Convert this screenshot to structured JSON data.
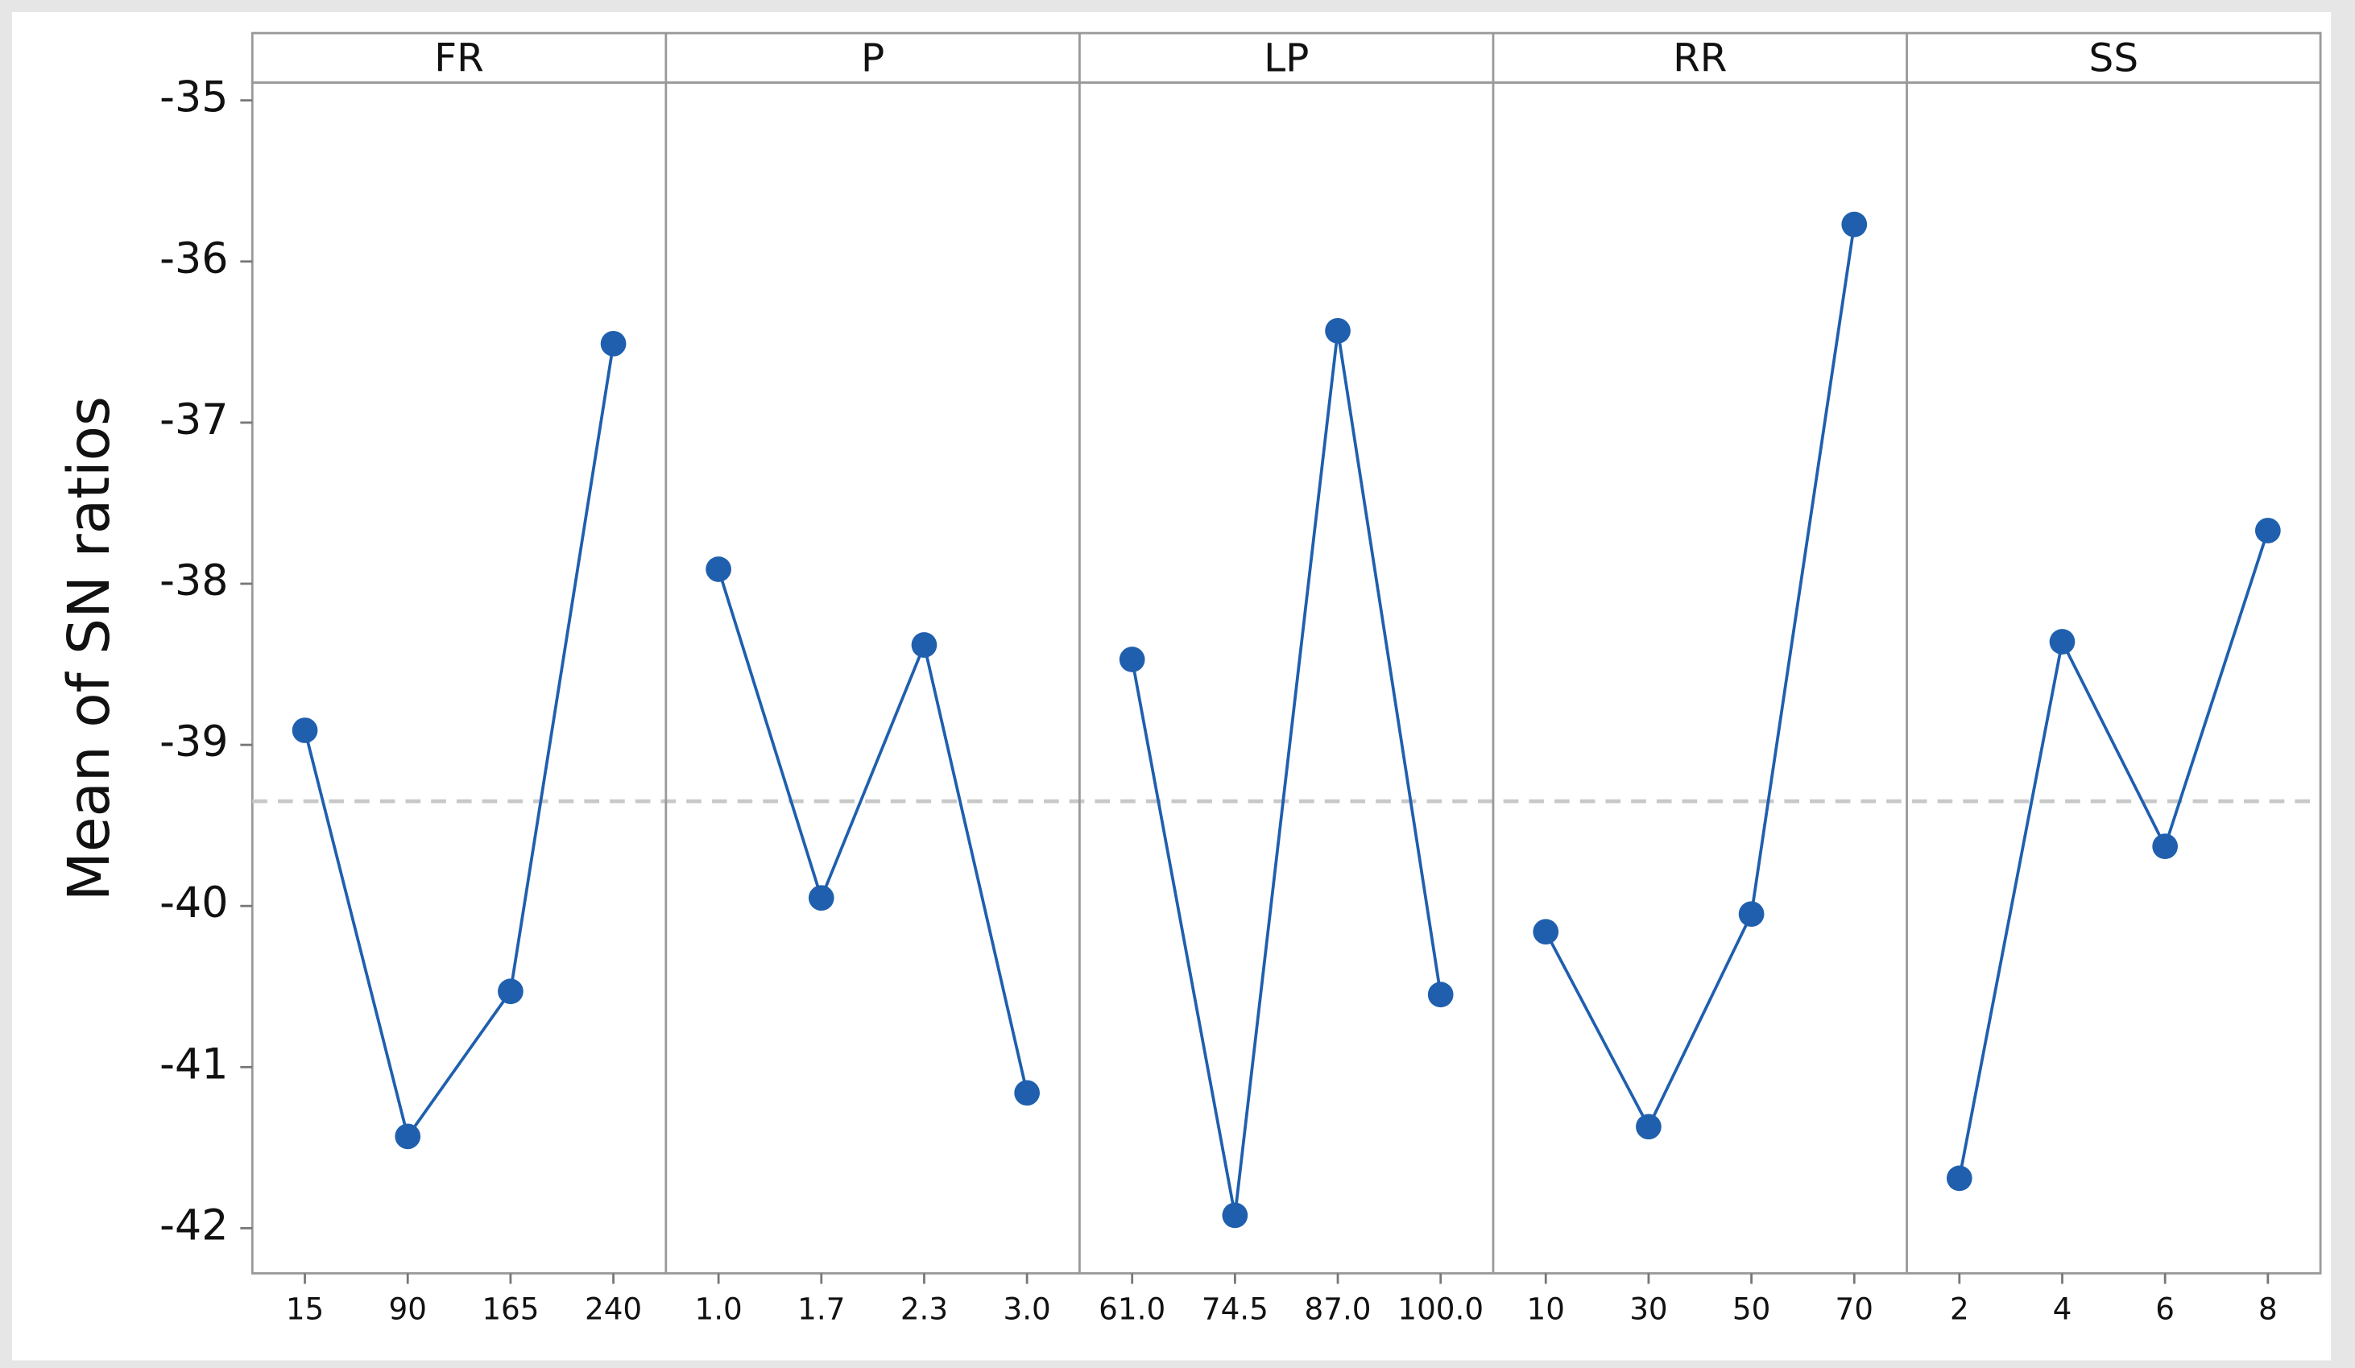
{
  "chart_data": {
    "type": "line",
    "y_label": "Mean of SN ratios",
    "ylim": [
      -42.28,
      -34.89
    ],
    "yticks": [
      -35,
      -36,
      -37,
      -38,
      -39,
      -40,
      -41,
      -42
    ],
    "reference_line": -39.35,
    "color": "#1f5fae",
    "panels": [
      {
        "title": "FR",
        "categories": [
          "15",
          "90",
          "165",
          "240"
        ],
        "values": [
          -38.91,
          -41.43,
          -40.53,
          -36.51
        ]
      },
      {
        "title": "P",
        "categories": [
          "1.0",
          "1.7",
          "2.3",
          "3.0"
        ],
        "values": [
          -37.91,
          -39.95,
          -38.38,
          -41.16
        ]
      },
      {
        "title": "LP",
        "categories": [
          "61.0",
          "74.5",
          "87.0",
          "100.0"
        ],
        "values": [
          -38.47,
          -41.92,
          -36.43,
          -40.55
        ]
      },
      {
        "title": "RR",
        "categories": [
          "10",
          "30",
          "50",
          "70"
        ],
        "values": [
          -40.16,
          -41.37,
          -40.05,
          -35.77
        ]
      },
      {
        "title": "SS",
        "categories": [
          "2",
          "4",
          "6",
          "8"
        ],
        "values": [
          -41.69,
          -38.36,
          -39.63,
          -37.67
        ]
      }
    ]
  }
}
